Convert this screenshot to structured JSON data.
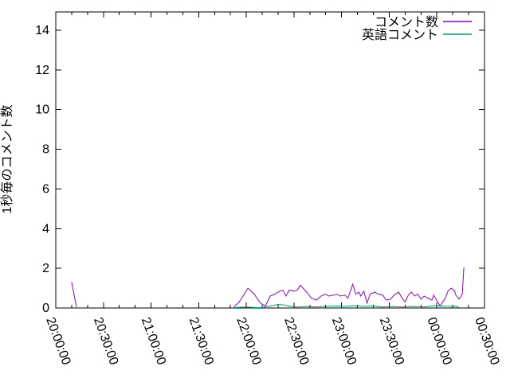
{
  "window": {
    "background": "#ffffff",
    "border_color": "#000000"
  },
  "chart_data": {
    "type": "line",
    "title": "",
    "xlabel": "",
    "ylabel": "1秒毎のコメント数",
    "ylim": [
      0,
      14.92
    ],
    "y_ticks": [
      "0",
      "2",
      "4",
      "6",
      "8",
      "10",
      "12",
      "14"
    ],
    "x_ticks": [
      "20:00:00",
      "20:30:00",
      "21:00:00",
      "21:30:00",
      "22:00:00",
      "22:30:00",
      "23:00:00",
      "23:30:00",
      "00:00:00",
      "00:30:00"
    ],
    "x_tick_step_minutes": 30,
    "x_minor_step_minutes": 10,
    "grid": false,
    "legend_position": "top-right-inside",
    "series": [
      {
        "key": "comments",
        "name": "コメント数",
        "color": "#9400d3",
        "segments": [
          [
            [
              "20:10",
              1.3
            ],
            [
              "20:13",
              0.05
            ]
          ],
          [
            [
              "21:52",
              0.05
            ],
            [
              "21:55",
              0.25
            ],
            [
              "21:58",
              0.6
            ],
            [
              "22:01",
              1.0
            ],
            [
              "22:03",
              0.85
            ],
            [
              "22:05",
              0.7
            ],
            [
              "22:07",
              0.45
            ],
            [
              "22:09",
              0.25
            ],
            [
              "22:12",
              0.1
            ],
            [
              "22:15",
              0.6
            ],
            [
              "22:18",
              0.7
            ],
            [
              "22:21",
              0.85
            ],
            [
              "22:23",
              0.9
            ],
            [
              "22:25",
              0.6
            ],
            [
              "22:27",
              0.9
            ],
            [
              "22:30",
              0.85
            ],
            [
              "22:32",
              0.9
            ],
            [
              "22:34",
              1.15
            ],
            [
              "22:38",
              0.8
            ],
            [
              "22:41",
              0.5
            ],
            [
              "22:44",
              0.4
            ],
            [
              "22:47",
              0.6
            ],
            [
              "22:50",
              0.7
            ],
            [
              "22:52",
              0.6
            ],
            [
              "22:55",
              0.65
            ],
            [
              "22:57",
              0.7
            ],
            [
              "22:59",
              0.6
            ],
            [
              "23:02",
              0.65
            ],
            [
              "23:04",
              0.5
            ],
            [
              "23:06",
              0.95
            ],
            [
              "23:07",
              1.2
            ],
            [
              "23:09",
              0.7
            ],
            [
              "23:11",
              0.8
            ],
            [
              "23:12",
              0.6
            ],
            [
              "23:14",
              0.85
            ],
            [
              "23:16",
              0.25
            ],
            [
              "23:18",
              0.7
            ],
            [
              "23:21",
              0.8
            ],
            [
              "23:23",
              0.7
            ],
            [
              "23:26",
              0.65
            ],
            [
              "23:28",
              0.4
            ],
            [
              "23:31",
              0.45
            ],
            [
              "23:33",
              0.65
            ],
            [
              "23:36",
              0.8
            ],
            [
              "23:38",
              0.5
            ],
            [
              "23:40",
              0.3
            ],
            [
              "23:42",
              0.65
            ],
            [
              "23:44",
              0.8
            ],
            [
              "23:46",
              0.6
            ],
            [
              "23:48",
              0.7
            ],
            [
              "23:50",
              0.45
            ],
            [
              "23:52",
              0.6
            ],
            [
              "23:54",
              0.5
            ],
            [
              "23:57",
              0.4
            ],
            [
              "23:58",
              0.65
            ],
            [
              "00:01",
              0.25
            ],
            [
              "00:02",
              0.1
            ],
            [
              "00:05",
              0.45
            ],
            [
              "00:07",
              0.85
            ],
            [
              "00:09",
              1.0
            ],
            [
              "00:11",
              0.9
            ],
            [
              "00:12",
              0.65
            ],
            [
              "00:14",
              0.45
            ],
            [
              "00:16",
              0.7
            ],
            [
              "00:17",
              2.05
            ]
          ]
        ]
      },
      {
        "key": "english-comments",
        "name": "英語コメント",
        "color": "#009e73",
        "segments": [
          [
            [
              "21:52",
              0.02
            ],
            [
              "22:00",
              0.05
            ],
            [
              "22:06",
              0.02
            ],
            [
              "22:10",
              0.02
            ],
            [
              "22:15",
              0.1
            ],
            [
              "22:20",
              0.18
            ],
            [
              "22:24",
              0.15
            ],
            [
              "22:28",
              0.08
            ],
            [
              "22:33",
              0.05
            ],
            [
              "22:38",
              0.08
            ],
            [
              "22:43",
              0.05
            ],
            [
              "22:50",
              0.08
            ],
            [
              "22:57",
              0.1
            ],
            [
              "23:03",
              0.08
            ],
            [
              "23:07",
              0.12
            ],
            [
              "23:13",
              0.08
            ],
            [
              "23:20",
              0.1
            ],
            [
              "23:26",
              0.05
            ],
            [
              "23:32",
              0.08
            ],
            [
              "23:38",
              0.05
            ],
            [
              "23:45",
              0.08
            ],
            [
              "23:52",
              0.05
            ],
            [
              "23:58",
              0.12
            ],
            [
              "00:03",
              0.1
            ],
            [
              "00:08",
              0.08
            ],
            [
              "00:12",
              0.1
            ],
            [
              "00:14",
              0.03
            ]
          ]
        ]
      }
    ]
  }
}
